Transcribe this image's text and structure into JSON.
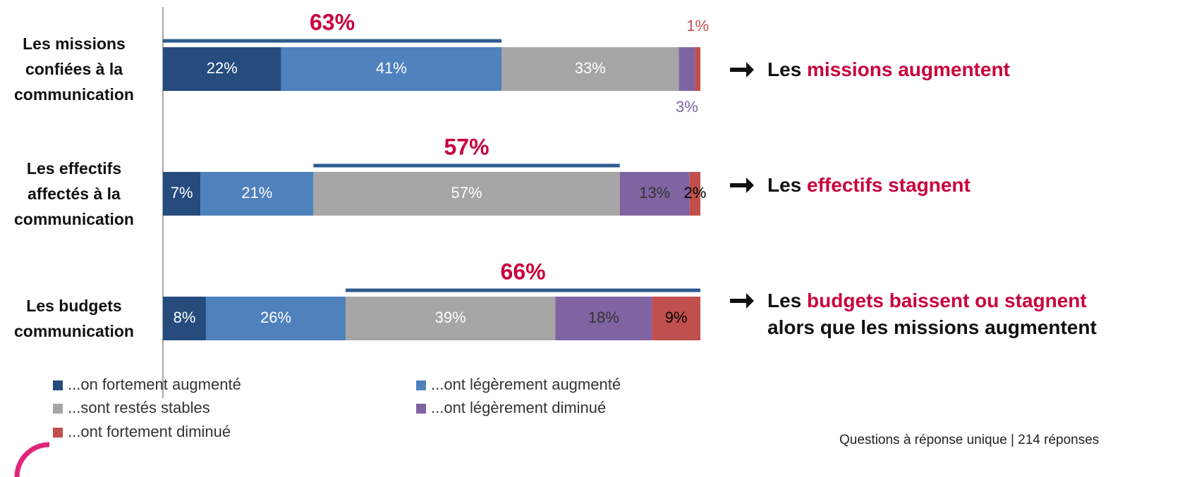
{
  "chart_data": {
    "type": "stacked-bar-horizontal",
    "categories": [
      "Les missions confiées à la communication",
      "Les effectifs affectés à la communication",
      "Les budgets communication"
    ],
    "xlim": [
      0,
      100
    ],
    "series": [
      {
        "name": "...on fortement augmenté",
        "color": "#264b7d",
        "label_color": "#ffffff",
        "values": [
          22,
          7,
          8
        ],
        "value_labels": [
          "22%",
          "7%",
          "8%"
        ]
      },
      {
        "name": "...ont légèrement augmenté",
        "color": "#4f81bd",
        "label_color": "#ffffff",
        "values": [
          41,
          21,
          26
        ],
        "value_labels": [
          "41%",
          "21%",
          "26%"
        ]
      },
      {
        "name": "...sont restés stables",
        "color": "#a6a6a6",
        "label_color": "#ffffff",
        "values": [
          33,
          57,
          39
        ],
        "value_labels": [
          "33%",
          "57%",
          "39%"
        ]
      },
      {
        "name": "...ont légèrement diminué",
        "color": "#8064a2",
        "label_color": "#333333",
        "values": [
          3,
          13,
          18
        ],
        "value_labels": [
          "3%",
          "13%",
          "18%"
        ]
      },
      {
        "name": "...ont fortement diminué",
        "color": "#c0504d",
        "label_color": "#000000",
        "values": [
          1,
          2,
          9
        ],
        "value_labels": [
          "1%",
          "2%",
          "9%"
        ]
      }
    ],
    "annotations": [
      {
        "label": "63%",
        "from": 0,
        "to": 63
      },
      {
        "label": "57%",
        "from": 28,
        "to": 85
      },
      {
        "label": "66%",
        "from": 34,
        "to": 100
      }
    ],
    "comments": [
      [
        {
          "text": "Les "
        },
        {
          "text": "missions augmentent",
          "highlight": true
        }
      ],
      [
        {
          "text": "Les "
        },
        {
          "text": "effectifs stagnent",
          "highlight": true
        }
      ],
      [
        {
          "text": "Les "
        },
        {
          "text": "budgets baissent ou stagnent",
          "highlight": true
        },
        {
          "text": " alors que les missions augmentent"
        }
      ]
    ],
    "footnote": "Questions à réponse unique | 214 réponses"
  }
}
